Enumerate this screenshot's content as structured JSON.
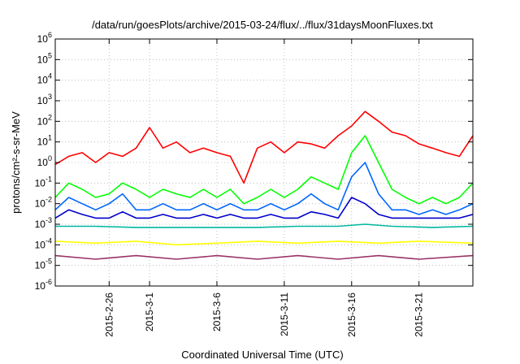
{
  "chart_data": {
    "type": "line",
    "title": "/data/run/goesPlots/archive/2015-03-24/flux/../flux/31daysMoonFluxes.txt",
    "xlabel": "Coordinated Universal Time (UTC)",
    "ylabel": "protons/cm²-s-sr-MeV",
    "y_scale": "log",
    "ylim": [
      1e-06,
      1000000.0
    ],
    "y_ticks": [
      {
        "base": "10",
        "exp": "6"
      },
      {
        "base": "10",
        "exp": "5"
      },
      {
        "base": "10",
        "exp": "4"
      },
      {
        "base": "10",
        "exp": "3"
      },
      {
        "base": "10",
        "exp": "2"
      },
      {
        "base": "10",
        "exp": "1"
      },
      {
        "base": "10",
        "exp": "0"
      },
      {
        "base": "10",
        "exp": "-1"
      },
      {
        "base": "10",
        "exp": "-2"
      },
      {
        "base": "10",
        "exp": "-3"
      },
      {
        "base": "10",
        "exp": "-4"
      },
      {
        "base": "10",
        "exp": "-5"
      },
      {
        "base": "10",
        "exp": "-6"
      }
    ],
    "xlim": [
      "2015-02-22",
      "2015-03-25"
    ],
    "x_ticks": [
      "2015-2-26",
      "2015-3-1",
      "2015-3-6",
      "2015-3-11",
      "2015-3-16",
      "2015-3-21"
    ],
    "grid": true,
    "legend": "none",
    "series": [
      {
        "color": "#ff0000",
        "points": [
          [
            "2015-02-22",
            0.8
          ],
          [
            "2015-02-23",
            2
          ],
          [
            "2015-02-24",
            3
          ],
          [
            "2015-02-25",
            1
          ],
          [
            "2015-02-26",
            3
          ],
          [
            "2015-02-27",
            2
          ],
          [
            "2015-02-28",
            5
          ],
          [
            "2015-03-01",
            50
          ],
          [
            "2015-03-02",
            5
          ],
          [
            "2015-03-03",
            10
          ],
          [
            "2015-03-04",
            3
          ],
          [
            "2015-03-05",
            5
          ],
          [
            "2015-03-06",
            3
          ],
          [
            "2015-03-07",
            2
          ],
          [
            "2015-03-08",
            0.1
          ],
          [
            "2015-03-09",
            5
          ],
          [
            "2015-03-10",
            10
          ],
          [
            "2015-03-11",
            3
          ],
          [
            "2015-03-12",
            10
          ],
          [
            "2015-03-13",
            8
          ],
          [
            "2015-03-14",
            5
          ],
          [
            "2015-03-15",
            20
          ],
          [
            "2015-03-16",
            60
          ],
          [
            "2015-03-17",
            300
          ],
          [
            "2015-03-18",
            100
          ],
          [
            "2015-03-19",
            30
          ],
          [
            "2015-03-20",
            20
          ],
          [
            "2015-03-21",
            8
          ],
          [
            "2015-03-22",
            5
          ],
          [
            "2015-03-23",
            3
          ],
          [
            "2015-03-24",
            2
          ],
          [
            "2015-03-25",
            20
          ]
        ]
      },
      {
        "color": "#00ff00",
        "points": [
          [
            "2015-02-22",
            0.02
          ],
          [
            "2015-02-23",
            0.1
          ],
          [
            "2015-02-24",
            0.05
          ],
          [
            "2015-02-25",
            0.02
          ],
          [
            "2015-02-26",
            0.03
          ],
          [
            "2015-02-27",
            0.1
          ],
          [
            "2015-02-28",
            0.05
          ],
          [
            "2015-03-01",
            0.02
          ],
          [
            "2015-03-02",
            0.05
          ],
          [
            "2015-03-03",
            0.03
          ],
          [
            "2015-03-04",
            0.02
          ],
          [
            "2015-03-05",
            0.05
          ],
          [
            "2015-03-06",
            0.02
          ],
          [
            "2015-03-07",
            0.05
          ],
          [
            "2015-03-08",
            0.01
          ],
          [
            "2015-03-09",
            0.02
          ],
          [
            "2015-03-10",
            0.05
          ],
          [
            "2015-03-11",
            0.02
          ],
          [
            "2015-03-12",
            0.05
          ],
          [
            "2015-03-13",
            0.2
          ],
          [
            "2015-03-14",
            0.1
          ],
          [
            "2015-03-15",
            0.05
          ],
          [
            "2015-03-16",
            3
          ],
          [
            "2015-03-17",
            20
          ],
          [
            "2015-03-18",
            1
          ],
          [
            "2015-03-19",
            0.05
          ],
          [
            "2015-03-20",
            0.02
          ],
          [
            "2015-03-21",
            0.01
          ],
          [
            "2015-03-22",
            0.02
          ],
          [
            "2015-03-23",
            0.01
          ],
          [
            "2015-03-24",
            0.02
          ],
          [
            "2015-03-25",
            0.1
          ]
        ]
      },
      {
        "color": "#0066ff",
        "points": [
          [
            "2015-02-22",
            0.005
          ],
          [
            "2015-02-23",
            0.02
          ],
          [
            "2015-02-24",
            0.01
          ],
          [
            "2015-02-25",
            0.005
          ],
          [
            "2015-02-26",
            0.01
          ],
          [
            "2015-02-27",
            0.03
          ],
          [
            "2015-02-28",
            0.005
          ],
          [
            "2015-03-01",
            0.005
          ],
          [
            "2015-03-02",
            0.01
          ],
          [
            "2015-03-03",
            0.005
          ],
          [
            "2015-03-04",
            0.005
          ],
          [
            "2015-03-05",
            0.01
          ],
          [
            "2015-03-06",
            0.005
          ],
          [
            "2015-03-07",
            0.01
          ],
          [
            "2015-03-08",
            0.005
          ],
          [
            "2015-03-09",
            0.005
          ],
          [
            "2015-03-10",
            0.01
          ],
          [
            "2015-03-11",
            0.005
          ],
          [
            "2015-03-12",
            0.01
          ],
          [
            "2015-03-13",
            0.03
          ],
          [
            "2015-03-14",
            0.01
          ],
          [
            "2015-03-15",
            0.005
          ],
          [
            "2015-03-16",
            0.2
          ],
          [
            "2015-03-17",
            1
          ],
          [
            "2015-03-18",
            0.03
          ],
          [
            "2015-03-19",
            0.005
          ],
          [
            "2015-03-20",
            0.005
          ],
          [
            "2015-03-21",
            0.003
          ],
          [
            "2015-03-22",
            0.005
          ],
          [
            "2015-03-23",
            0.003
          ],
          [
            "2015-03-24",
            0.005
          ],
          [
            "2015-03-25",
            0.01
          ]
        ]
      },
      {
        "color": "#0000cc",
        "points": [
          [
            "2015-02-22",
            0.002
          ],
          [
            "2015-02-23",
            0.005
          ],
          [
            "2015-02-24",
            0.003
          ],
          [
            "2015-02-25",
            0.002
          ],
          [
            "2015-02-26",
            0.002
          ],
          [
            "2015-02-27",
            0.004
          ],
          [
            "2015-02-28",
            0.002
          ],
          [
            "2015-03-01",
            0.002
          ],
          [
            "2015-03-02",
            0.003
          ],
          [
            "2015-03-03",
            0.002
          ],
          [
            "2015-03-04",
            0.002
          ],
          [
            "2015-03-05",
            0.003
          ],
          [
            "2015-03-06",
            0.002
          ],
          [
            "2015-03-07",
            0.003
          ],
          [
            "2015-03-08",
            0.002
          ],
          [
            "2015-03-09",
            0.002
          ],
          [
            "2015-03-10",
            0.003
          ],
          [
            "2015-03-11",
            0.002
          ],
          [
            "2015-03-12",
            0.002
          ],
          [
            "2015-03-13",
            0.004
          ],
          [
            "2015-03-14",
            0.003
          ],
          [
            "2015-03-15",
            0.002
          ],
          [
            "2015-03-16",
            0.02
          ],
          [
            "2015-03-17",
            0.01
          ],
          [
            "2015-03-18",
            0.003
          ],
          [
            "2015-03-19",
            0.002
          ],
          [
            "2015-03-20",
            0.002
          ],
          [
            "2015-03-21",
            0.002
          ],
          [
            "2015-03-22",
            0.002
          ],
          [
            "2015-03-23",
            0.002
          ],
          [
            "2015-03-24",
            0.002
          ],
          [
            "2015-03-25",
            0.003
          ]
        ]
      },
      {
        "color": "#00b8a0",
        "points": [
          [
            "2015-02-22",
            0.0008
          ],
          [
            "2015-02-25",
            0.0008
          ],
          [
            "2015-02-28",
            0.0007
          ],
          [
            "2015-03-03",
            0.0007
          ],
          [
            "2015-03-06",
            0.0007
          ],
          [
            "2015-03-09",
            0.0007
          ],
          [
            "2015-03-12",
            0.0008
          ],
          [
            "2015-03-15",
            0.0008
          ],
          [
            "2015-03-17",
            0.001
          ],
          [
            "2015-03-19",
            0.0008
          ],
          [
            "2015-03-22",
            0.0007
          ],
          [
            "2015-03-25",
            0.0008
          ]
        ]
      },
      {
        "color": "#ffff00",
        "points": [
          [
            "2015-02-22",
            0.00015
          ],
          [
            "2015-02-25",
            0.00012
          ],
          [
            "2015-02-28",
            0.00015
          ],
          [
            "2015-03-03",
            0.0001
          ],
          [
            "2015-03-06",
            0.00012
          ],
          [
            "2015-03-09",
            0.00015
          ],
          [
            "2015-03-12",
            0.00012
          ],
          [
            "2015-03-15",
            0.00015
          ],
          [
            "2015-03-18",
            0.00012
          ],
          [
            "2015-03-21",
            0.00015
          ],
          [
            "2015-03-25",
            0.00012
          ]
        ]
      },
      {
        "color": "#993366",
        "points": [
          [
            "2015-02-22",
            3e-05
          ],
          [
            "2015-02-25",
            2e-05
          ],
          [
            "2015-02-28",
            3e-05
          ],
          [
            "2015-03-03",
            2e-05
          ],
          [
            "2015-03-06",
            3e-05
          ],
          [
            "2015-03-09",
            2e-05
          ],
          [
            "2015-03-12",
            3e-05
          ],
          [
            "2015-03-15",
            2e-05
          ],
          [
            "2015-03-18",
            3e-05
          ],
          [
            "2015-03-21",
            2e-05
          ],
          [
            "2015-03-25",
            3e-05
          ]
        ]
      }
    ]
  }
}
